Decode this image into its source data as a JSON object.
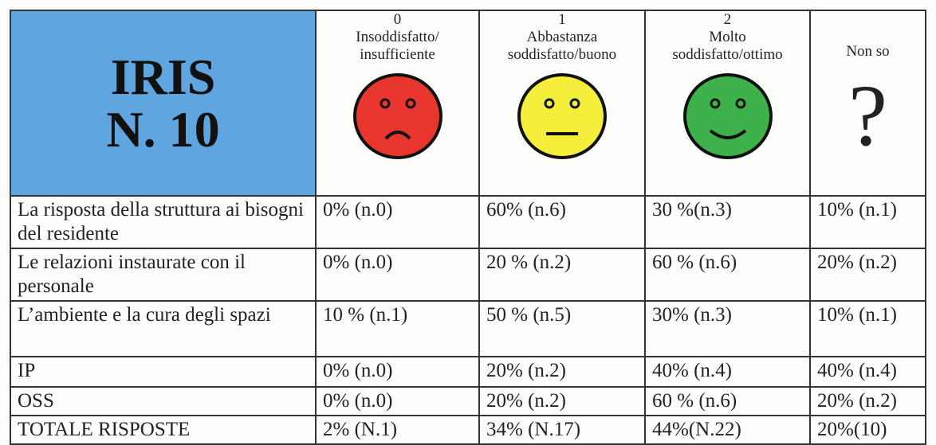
{
  "header": {
    "title": [
      "IRIS",
      "N. 10"
    ],
    "columns": [
      {
        "code": "0",
        "label": [
          "Insoddisfatto/",
          "insufficiente"
        ]
      },
      {
        "code": "1",
        "label": [
          "Abbastanza",
          "soddisfatto/buono"
        ]
      },
      {
        "code": "2",
        "label": [
          "Molto",
          "soddisfatto/ottimo"
        ]
      },
      {
        "label": [
          "Non so"
        ],
        "symbol": "?"
      }
    ]
  },
  "table": {
    "rows": [
      [
        "La risposta della struttura ai bisogni del residente",
        "0% (n.0)",
        "60% (n.6)",
        "30 %(n.3)",
        "10% (n.1)"
      ],
      [
        "Le relazioni instaurate con il personale",
        "0% (n.0)",
        "20 % (n.2)",
        "60 % (n.6)",
        "20% (n.2)"
      ],
      [
        "L’ambiente e la cura degli spazi",
        "10 % (n.1)",
        "50 % (n.5)",
        "30% (n.3)",
        "10% (n.1)"
      ],
      [
        "IP",
        "0% (n.0)",
        "20% (n.2)",
        "40% (n.4)",
        "40% (n.4)"
      ],
      [
        "OSS",
        "0% (n.0)",
        "20% (n.2)",
        "60 % (n.6)",
        "20% (n.2)"
      ],
      [
        "TOTALE RISPOSTE",
        "2% (N.1)",
        "34% (N.17)",
        "44%(N.22)",
        "20%(10)"
      ]
    ]
  }
}
